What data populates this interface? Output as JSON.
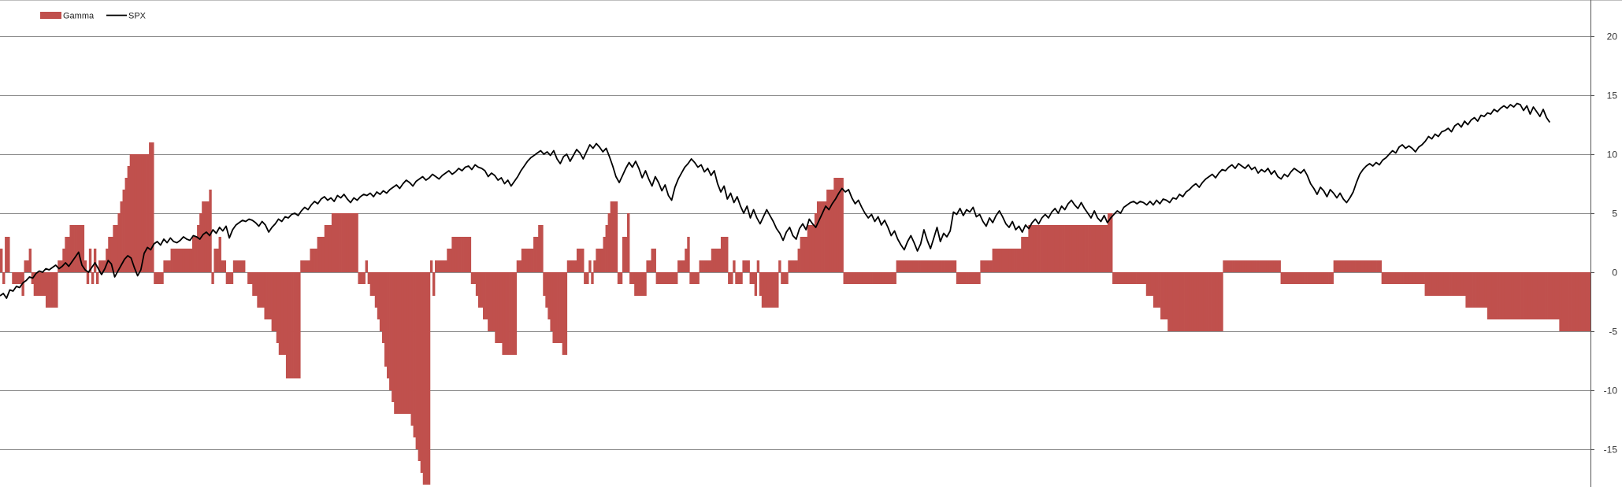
{
  "chart_data": {
    "type": "bar",
    "title": "",
    "xlabel": "",
    "ylabel": "",
    "ylim": [
      -18.2,
      20
    ],
    "yticks": [
      20,
      15,
      10,
      5,
      0,
      -5,
      -10,
      -15
    ],
    "grid": true,
    "legend_position": "top-left",
    "series": [
      {
        "name": "Gamma",
        "kind": "bar",
        "color": "#C0504D",
        "values": [
          2,
          -1,
          3,
          3,
          0,
          -1,
          -1,
          -1,
          -1,
          -2,
          1,
          1,
          2,
          -1,
          -2,
          -2,
          -2,
          -2,
          -2,
          -3,
          -3,
          -3,
          -3,
          -3,
          1,
          1,
          2,
          3,
          3,
          4,
          4,
          4,
          4,
          4,
          4,
          1,
          -1,
          2,
          -1,
          2,
          -1,
          1,
          1,
          1,
          2,
          3,
          3,
          4,
          4,
          5,
          6,
          7,
          8,
          9,
          10,
          10,
          10,
          10,
          10,
          10,
          10,
          10,
          11,
          11,
          -1,
          -1,
          -1,
          -1,
          1,
          1,
          1,
          2,
          2,
          2,
          2,
          2,
          2,
          2,
          2,
          2,
          3,
          3,
          4,
          5,
          6,
          6,
          6,
          7,
          -1,
          2,
          2,
          3,
          1,
          1,
          -1,
          -1,
          -1,
          1,
          1,
          1,
          1,
          1,
          0,
          -1,
          -1,
          -2,
          -2,
          -3,
          -3,
          -3,
          -4,
          -4,
          -4,
          -5,
          -5,
          -6,
          -7,
          -7,
          -7,
          -9,
          -9,
          -9,
          -9,
          -9,
          -9,
          1,
          1,
          1,
          1,
          2,
          2,
          2,
          3,
          3,
          3,
          4,
          4,
          4,
          5,
          5,
          5,
          5,
          5,
          5,
          5,
          5,
          5,
          5,
          5,
          -1,
          -1,
          -1,
          1,
          -1,
          -2,
          -2,
          -3,
          -4,
          -5,
          -6,
          -8,
          -9,
          -10,
          -11,
          -12,
          -12,
          -12,
          -12,
          -12,
          -12,
          -12,
          -13,
          -14,
          -15,
          -16,
          -17,
          -18,
          -18,
          -18,
          1,
          -2,
          1,
          1,
          1,
          1,
          1,
          2,
          2,
          3,
          3,
          3,
          3,
          3,
          3,
          3,
          3,
          -1,
          -1,
          -2,
          -3,
          -3,
          -4,
          -4,
          -5,
          -5,
          -5,
          -6,
          -6,
          -6,
          -7,
          -7,
          -7,
          -7,
          -7,
          -7,
          1,
          1,
          2,
          2,
          2,
          2,
          2,
          3,
          3,
          4,
          4,
          -2,
          -3,
          -4,
          -5,
          -6,
          -6,
          -6,
          -6,
          -7,
          -7,
          1,
          1,
          1,
          1,
          2,
          2,
          2,
          -1,
          -1,
          1,
          -1,
          1,
          2,
          2,
          2,
          3,
          4,
          5,
          6,
          6,
          6,
          -1,
          -1,
          3,
          3,
          5,
          -1,
          -1,
          -2,
          -2,
          -2,
          -2,
          -2,
          1,
          1,
          2,
          2,
          -1,
          -1,
          -1,
          -1,
          -1,
          -1,
          -1,
          -1,
          -1,
          1,
          1,
          1,
          2,
          3,
          -1,
          -1,
          -1,
          -1,
          1,
          1,
          1,
          1,
          1,
          2,
          2,
          2,
          2,
          3,
          3,
          3,
          -1,
          -1,
          1,
          -1,
          -1,
          -1,
          1,
          1,
          1,
          -1,
          -1,
          -2,
          1,
          -2,
          -3,
          -3,
          -3,
          -3,
          -3,
          -3,
          -3,
          1,
          -1,
          -1,
          -1,
          1,
          1,
          1,
          1,
          2,
          3,
          3,
          3,
          4,
          4,
          4,
          5,
          6,
          6,
          6,
          6,
          7,
          7,
          7,
          8,
          8,
          8,
          8,
          -1,
          -1,
          -1,
          -1,
          -1,
          -1,
          -1,
          -1,
          -1,
          -1,
          -1,
          -1,
          -1,
          -1,
          -1,
          -1,
          -1,
          -1,
          -1,
          -1,
          -1,
          -1,
          1,
          1,
          1,
          1,
          1,
          1,
          1,
          1,
          1,
          1,
          1,
          1,
          1,
          1,
          1,
          1,
          1,
          1,
          1,
          1,
          1,
          1,
          1,
          1,
          1,
          -1,
          -1,
          -1,
          -1,
          -1,
          -1,
          -1,
          -1,
          -1,
          -1,
          1,
          1,
          1,
          1,
          1,
          2,
          2,
          2,
          2,
          2,
          2,
          2,
          2,
          2,
          2,
          2,
          2,
          3,
          3,
          3,
          4,
          4,
          4,
          4,
          4,
          4,
          4,
          4,
          4,
          4,
          4,
          4,
          4,
          4,
          4,
          4,
          4,
          4,
          4,
          4,
          4,
          4,
          4,
          4,
          4,
          4,
          4,
          4,
          4,
          4,
          4,
          4,
          4,
          5,
          5,
          -1,
          -1,
          -1,
          -1,
          -1,
          -1,
          -1,
          -1,
          -1,
          -1,
          -1,
          -1,
          -1,
          -1,
          -2,
          -2,
          -2,
          -3,
          -3,
          -3,
          -4,
          -4,
          -4,
          -5,
          -5,
          -5,
          -5,
          -5,
          -5,
          -5,
          -5,
          -5,
          -5,
          -5,
          -5,
          -5,
          -5,
          -5,
          -5,
          -5,
          -5,
          -5,
          -5,
          -5,
          -5,
          -5,
          1,
          1,
          1,
          1,
          1,
          1,
          1,
          1,
          1,
          1,
          1,
          1,
          1,
          1,
          1,
          1,
          1,
          1,
          1,
          1,
          1,
          1,
          1,
          1,
          -1,
          -1,
          -1,
          -1,
          -1,
          -1,
          -1,
          -1,
          -1,
          -1,
          -1,
          -1,
          -1,
          -1,
          -1,
          -1,
          -1,
          -1,
          -1,
          -1,
          -1,
          -1,
          1,
          1,
          1,
          1,
          1,
          1,
          1,
          1,
          1,
          1,
          1,
          1,
          1,
          1,
          1,
          1,
          1,
          1,
          1,
          1,
          -1,
          -1,
          -1,
          -1,
          -1,
          -1,
          -1,
          -1,
          -1,
          -1,
          -1,
          -1,
          -1,
          -1,
          -1,
          -1,
          -1,
          -1,
          -2,
          -2,
          -2,
          -2,
          -2,
          -2,
          -2,
          -2,
          -2,
          -2,
          -2,
          -2,
          -2,
          -2,
          -2,
          -2,
          -2,
          -3,
          -3,
          -3,
          -3,
          -3,
          -3,
          -3,
          -3,
          -3,
          -4,
          -4,
          -4,
          -4,
          -4,
          -4,
          -4,
          -4,
          -4,
          -4,
          -4,
          -4,
          -4,
          -4,
          -4,
          -4,
          -4,
          -4,
          -4,
          -4,
          -4,
          -4,
          -4,
          -4,
          -4,
          -4,
          -4,
          -4,
          -4,
          -4,
          -5,
          -5,
          -5,
          -5,
          -5,
          -5,
          -5,
          -5,
          -5,
          -5,
          -5,
          -5,
          -5
        ]
      },
      {
        "name": "SPX",
        "kind": "line",
        "color": "#000000",
        "x_extent": [
          0,
          0.9744
        ],
        "values": [
          -2,
          -1.8,
          -2.2,
          -1.5,
          -1.6,
          -1.2,
          -1.3,
          -0.9,
          -0.7,
          -0.4,
          -0.5,
          -0.1,
          0.1,
          0.0,
          0.3,
          0.2,
          0.4,
          0.6,
          0.3,
          0.5,
          0.8,
          0.5,
          0.9,
          1.3,
          1.7,
          0.6,
          0.2,
          0.0,
          0.4,
          0.8,
          0.3,
          -0.2,
          0.3,
          1.0,
          0.7,
          -0.4,
          0.1,
          0.6,
          1.1,
          1.4,
          1.2,
          0.4,
          -0.3,
          0.2,
          1.6,
          2.1,
          1.9,
          2.4,
          2.6,
          2.3,
          2.8,
          2.5,
          2.9,
          2.6,
          2.5,
          2.7,
          3.0,
          2.8,
          2.7,
          3.1,
          3.0,
          2.8,
          3.2,
          3.4,
          3.1,
          3.6,
          3.3,
          3.8,
          3.5,
          3.9,
          2.9,
          3.6,
          4.0,
          4.2,
          4.4,
          4.3,
          4.5,
          4.4,
          4.2,
          3.9,
          4.3,
          4.0,
          3.4,
          3.8,
          4.1,
          4.5,
          4.3,
          4.7,
          4.6,
          4.9,
          5.0,
          4.8,
          5.2,
          5.5,
          5.3,
          5.7,
          6.0,
          5.8,
          6.2,
          6.4,
          6.1,
          6.3,
          6.0,
          6.5,
          6.3,
          6.6,
          6.2,
          5.9,
          6.3,
          6.1,
          6.4,
          6.6,
          6.5,
          6.7,
          6.4,
          6.8,
          6.6,
          6.9,
          6.7,
          7.0,
          7.2,
          7.4,
          7.1,
          7.5,
          7.8,
          7.6,
          7.3,
          7.7,
          7.9,
          8.1,
          7.8,
          8.0,
          8.3,
          8.1,
          7.9,
          8.2,
          8.4,
          8.6,
          8.3,
          8.5,
          8.8,
          8.6,
          8.9,
          9.0,
          8.7,
          9.1,
          8.9,
          8.8,
          8.6,
          8.1,
          8.4,
          8.2,
          7.8,
          8.0,
          7.5,
          7.8,
          7.3,
          7.7,
          8.1,
          8.6,
          9.0,
          9.4,
          9.7,
          9.9,
          10.1,
          10.3,
          10.0,
          10.2,
          9.9,
          10.3,
          9.6,
          9.2,
          9.8,
          10.0,
          9.4,
          9.9,
          10.4,
          10.1,
          9.6,
          10.2,
          10.8,
          10.5,
          10.9,
          10.6,
          10.2,
          10.5,
          9.8,
          9.0,
          8.1,
          7.6,
          8.2,
          8.8,
          9.3,
          8.9,
          9.4,
          8.8,
          8.0,
          8.6,
          7.9,
          7.3,
          8.1,
          7.6,
          6.9,
          7.4,
          6.5,
          6.1,
          7.2,
          7.9,
          8.4,
          8.9,
          9.2,
          9.6,
          9.3,
          8.9,
          9.1,
          8.5,
          8.8,
          8.2,
          8.6,
          7.5,
          6.8,
          7.3,
          6.2,
          6.7,
          5.9,
          6.4,
          5.6,
          5.0,
          5.6,
          4.6,
          5.3,
          4.6,
          4.1,
          4.7,
          5.3,
          4.8,
          4.3,
          3.7,
          3.3,
          2.7,
          3.4,
          3.8,
          3.1,
          2.8,
          3.7,
          4.1,
          3.6,
          4.5,
          4.1,
          3.8,
          4.4,
          5.0,
          5.6,
          5.3,
          5.8,
          6.2,
          6.7,
          7.1,
          6.8,
          7.0,
          6.3,
          5.8,
          6.1,
          5.5,
          5.0,
          4.6,
          4.9,
          4.3,
          4.7,
          4.0,
          4.4,
          3.8,
          3.1,
          3.5,
          2.8,
          2.3,
          1.9,
          2.6,
          3.1,
          2.5,
          1.8,
          2.4,
          3.6,
          2.7,
          2.0,
          2.9,
          3.8,
          2.6,
          3.3,
          3.0,
          3.5,
          5.1,
          4.9,
          5.4,
          4.8,
          5.3,
          5.1,
          5.5,
          4.7,
          4.9,
          4.3,
          3.9,
          4.6,
          4.2,
          4.8,
          5.2,
          4.7,
          4.1,
          3.8,
          4.3,
          3.6,
          3.9,
          3.4,
          4.0,
          3.7,
          4.2,
          4.5,
          4.1,
          4.6,
          4.9,
          4.6,
          5.1,
          5.4,
          5.0,
          5.6,
          5.3,
          5.8,
          6.1,
          5.7,
          5.4,
          5.9,
          5.4,
          5.0,
          4.6,
          5.2,
          4.6,
          4.3,
          4.8,
          4.2,
          4.6,
          4.9,
          5.2,
          5.0,
          5.5,
          5.7,
          5.9,
          6.0,
          5.8,
          6.0,
          5.9,
          5.7,
          6.0,
          5.7,
          6.1,
          5.8,
          6.2,
          6.1,
          5.9,
          6.3,
          6.2,
          6.6,
          6.4,
          6.8,
          7.0,
          7.3,
          7.5,
          7.2,
          7.6,
          7.9,
          8.1,
          8.3,
          8.0,
          8.4,
          8.7,
          8.6,
          8.9,
          9.1,
          8.8,
          9.2,
          9.0,
          8.8,
          9.1,
          8.7,
          8.9,
          8.4,
          8.7,
          8.5,
          8.8,
          8.3,
          8.6,
          8.1,
          7.9,
          8.3,
          8.1,
          8.5,
          8.8,
          8.6,
          8.4,
          8.7,
          8.2,
          7.5,
          7.1,
          6.6,
          7.2,
          6.9,
          6.4,
          7.0,
          6.7,
          6.3,
          6.7,
          6.2,
          5.9,
          6.3,
          6.8,
          7.6,
          8.3,
          8.7,
          9.0,
          9.2,
          9.0,
          9.3,
          9.1,
          9.5,
          9.7,
          10.0,
          10.3,
          10.1,
          10.6,
          10.8,
          10.5,
          10.7,
          10.5,
          10.2,
          10.6,
          10.8,
          11.1,
          11.5,
          11.3,
          11.7,
          11.5,
          11.9,
          12.0,
          12.2,
          11.9,
          12.4,
          12.6,
          12.3,
          12.8,
          12.5,
          12.9,
          13.1,
          12.8,
          13.3,
          13.2,
          13.5,
          13.4,
          13.8,
          13.6,
          13.9,
          14.1,
          13.9,
          14.2,
          14.0,
          14.3,
          14.2,
          13.7,
          14.1,
          13.4,
          14.0,
          13.6,
          13.2,
          13.8,
          13.1,
          12.7
        ]
      }
    ]
  }
}
